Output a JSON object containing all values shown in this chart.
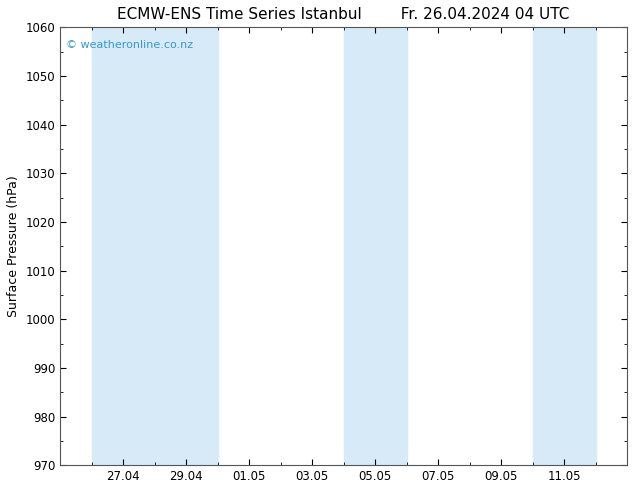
{
  "title_left": "ECMW-ENS Time Series Istanbul",
  "title_right": "Fr. 26.04.2024 04 UTC",
  "ylabel": "Surface Pressure (hPa)",
  "ylim": [
    970,
    1060
  ],
  "yticks": [
    970,
    980,
    990,
    1000,
    1010,
    1020,
    1030,
    1040,
    1050,
    1060
  ],
  "xtick_labels": [
    "27.04",
    "29.04",
    "01.05",
    "03.05",
    "05.05",
    "07.05",
    "09.05",
    "11.05"
  ],
  "xtick_positions": [
    2,
    4,
    6,
    8,
    10,
    12,
    14,
    16
  ],
  "shaded_bands": [
    {
      "xmin": 1,
      "xmax": 3
    },
    {
      "xmin": 3,
      "xmax": 5
    },
    {
      "xmin": 9,
      "xmax": 11
    },
    {
      "xmin": 15,
      "xmax": 17
    }
  ],
  "band_color": "#d6eaf8",
  "background_color": "#ffffff",
  "border_color": "#555555",
  "watermark": "© weatheronline.co.nz",
  "watermark_color": "#3399cc",
  "watermark_fontsize": 8,
  "title_fontsize": 11,
  "tick_fontsize": 8.5,
  "ylabel_fontsize": 9,
  "xlim": [
    0,
    18
  ]
}
